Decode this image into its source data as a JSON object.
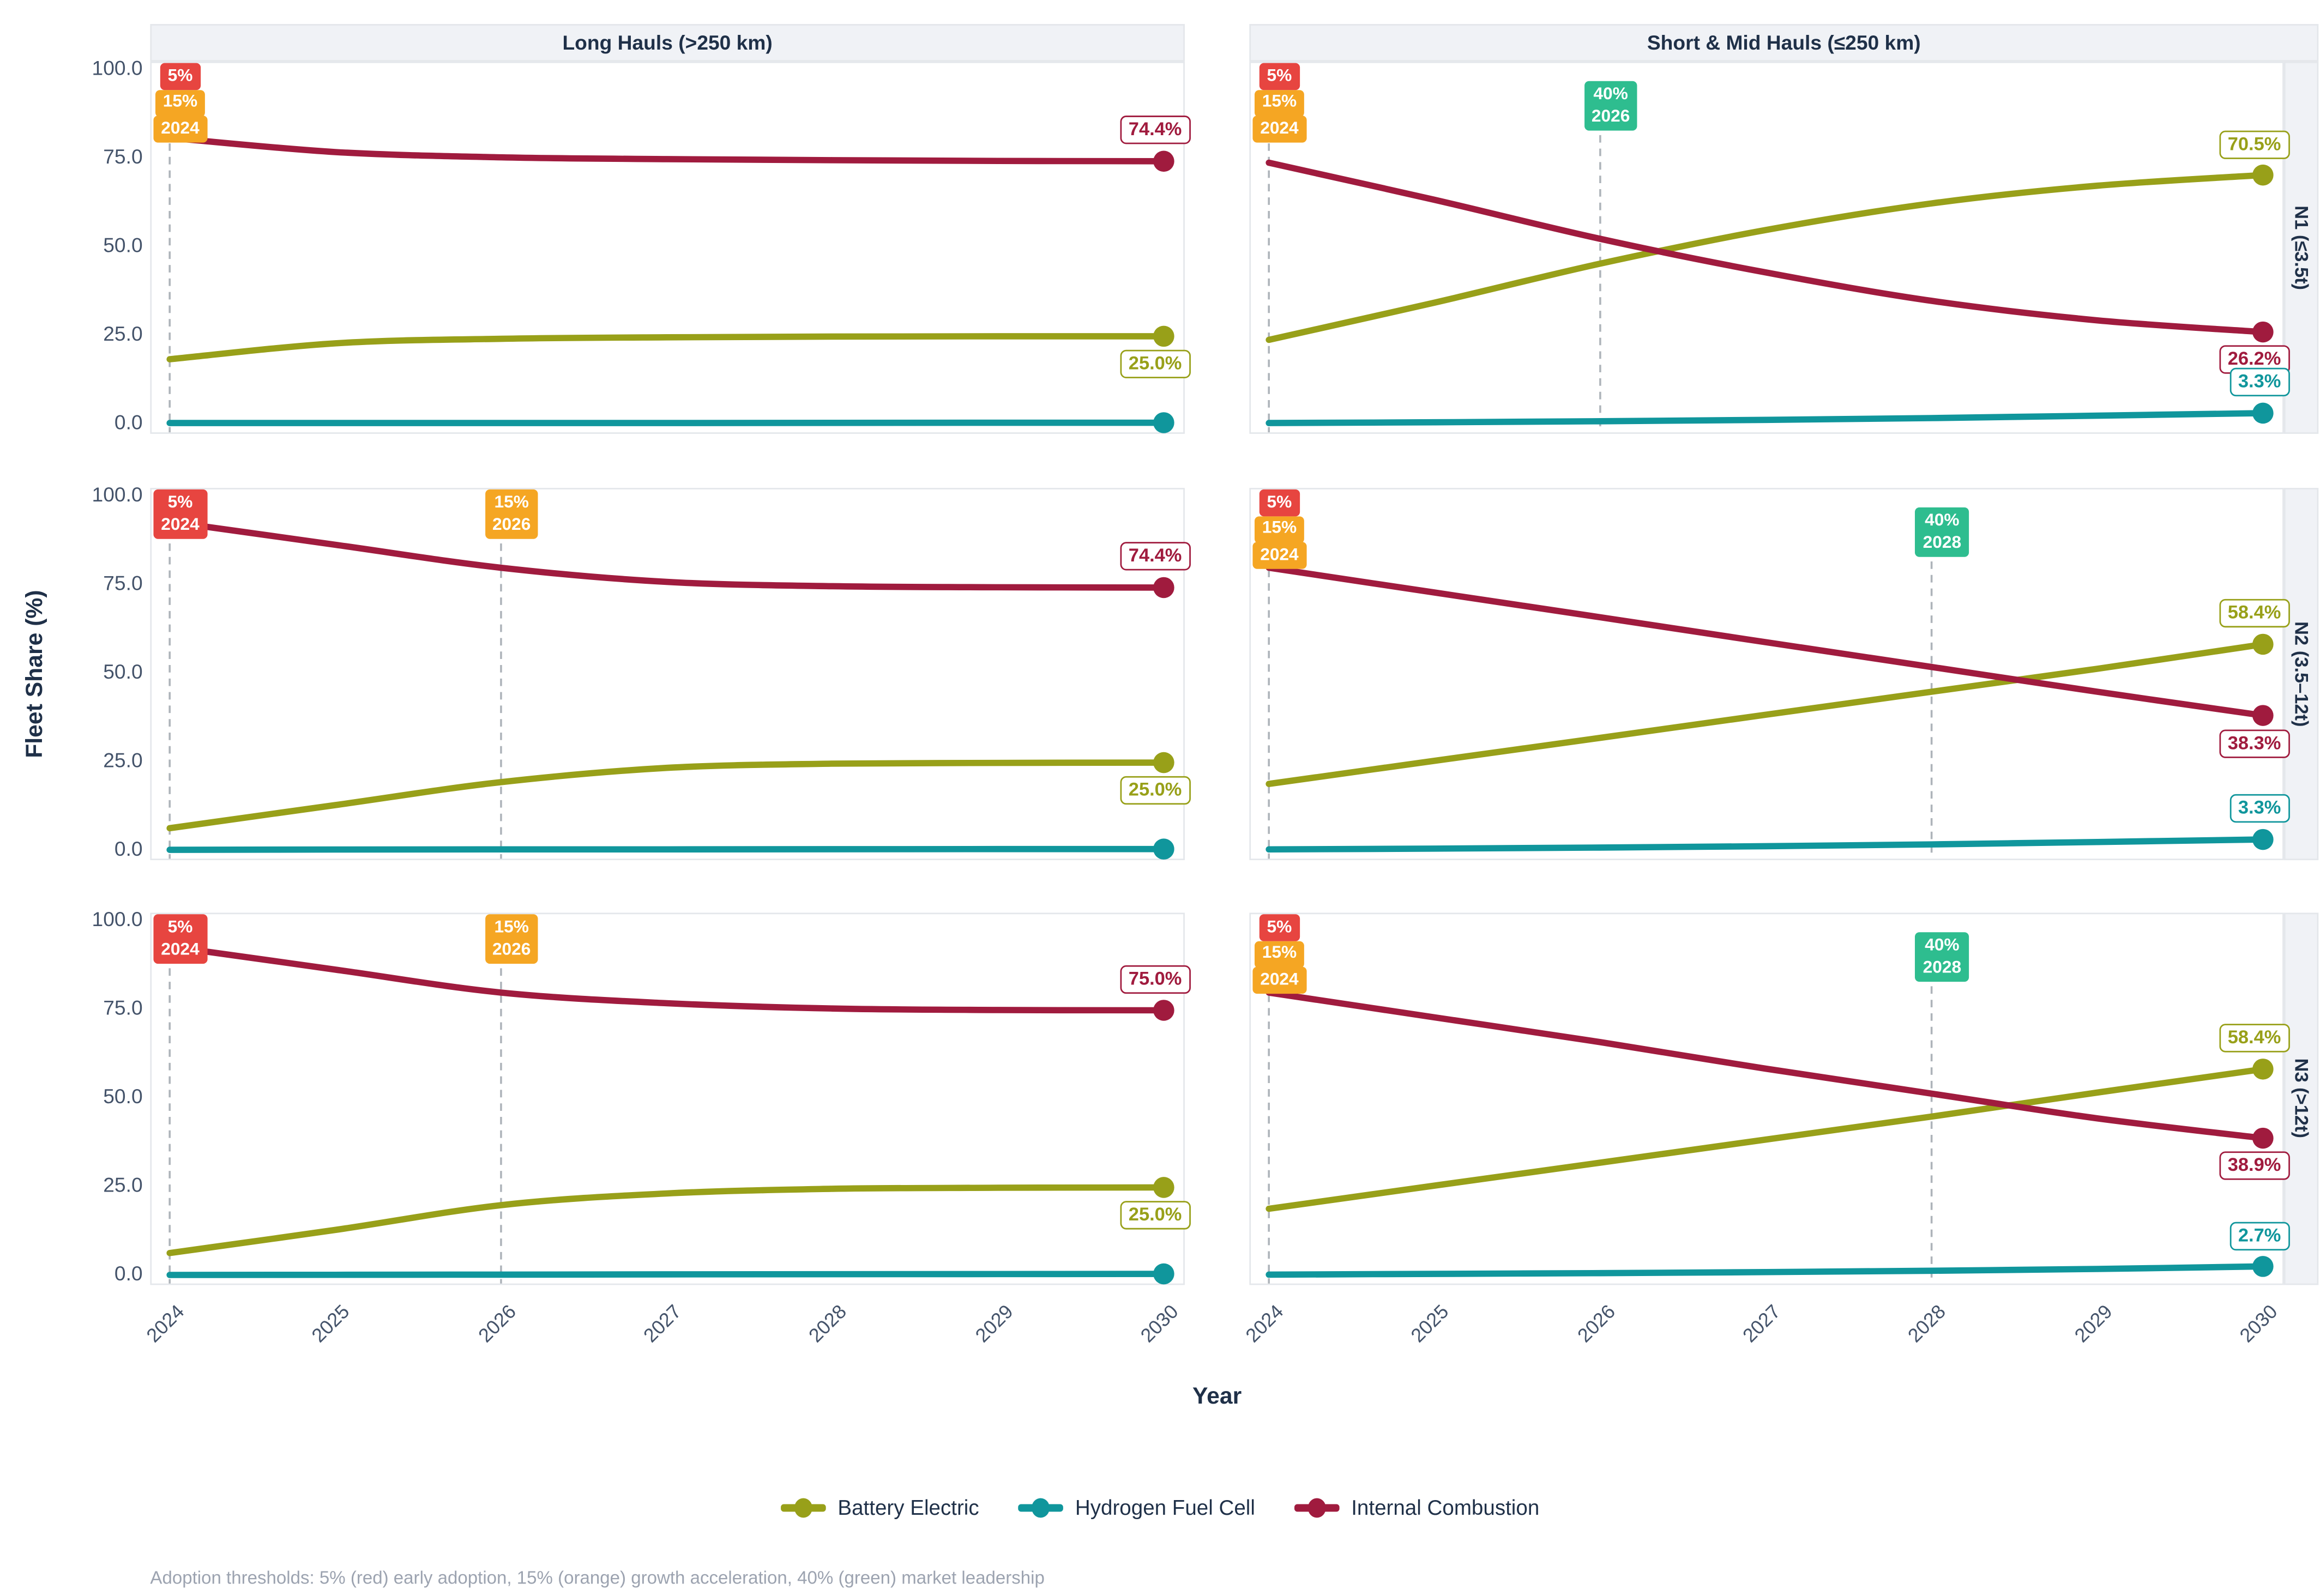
{
  "facets": {
    "col_titles": [
      "Long Hauls (>250 km)",
      "Short & Mid Hauls (≤250 km)"
    ],
    "row_titles": [
      "N1 (≤3.5t)",
      "N2 (3.5–12t)",
      "N3 (>12t)"
    ]
  },
  "axes": {
    "y_title": "Fleet Share (%)",
    "x_title": "Year",
    "y_ticks": [
      "100.0",
      "75.0",
      "50.0",
      "25.0",
      "0.0"
    ],
    "x_ticks": [
      "2024",
      "2025",
      "2026",
      "2027",
      "2028",
      "2029",
      "2030"
    ],
    "y_range": [
      0,
      100
    ]
  },
  "legend": [
    {
      "label": "Battery Electric",
      "color": "#98a019"
    },
    {
      "label": "Hydrogen Fuel Cell",
      "color": "#10969c"
    },
    {
      "label": "Internal Combustion",
      "color": "#a01b3e"
    }
  ],
  "caption": "Adoption thresholds: 5% (red) early adoption, 15% (orange) growth acceleration, 40% (green) market leadership",
  "colors": {
    "battery_electric": "#98a019",
    "hydrogen_fuel_cell": "#10969c",
    "internal_combustion": "#a01b3e",
    "threshold_red": "#e74540",
    "threshold_orange": "#f5a623",
    "threshold_green": "#2ebd8f",
    "dashed_line": "#aeb4ba",
    "strip_bg": "#f0f2f6",
    "panel_border": "#e4e7eb",
    "axis_text": "#44536a",
    "title_text": "#1f3048",
    "caption_text": "#9ca3b0"
  },
  "chart_data": {
    "type": "line",
    "x": [
      2024,
      2025,
      2026,
      2027,
      2028,
      2029,
      2030
    ],
    "ylim": [
      0,
      100
    ],
    "grid": false,
    "legend_position": "bottom",
    "panels": [
      {
        "row": 0,
        "col": 0,
        "row_title": "N1 (≤3.5t)",
        "col_title": "Long Hauls (>250 km)",
        "series": [
          {
            "name": "Battery Electric",
            "values": [
              18.5,
              23.0,
              24.3,
              24.7,
              24.9,
              25.0,
              25.0
            ]
          },
          {
            "name": "Hydrogen Fuel Cell",
            "values": [
              0.5,
              0.5,
              0.5,
              0.5,
              0.55,
              0.6,
              0.6
            ]
          },
          {
            "name": "Internal Combustion",
            "values": [
              81.0,
              77.0,
              75.5,
              75.0,
              74.7,
              74.5,
              74.4
            ]
          }
        ],
        "annotations": [
          {
            "year": 2024,
            "badges": [
              {
                "text": "5%",
                "color": "#e74540"
              },
              {
                "text": "15%",
                "color": "#f5a623"
              },
              {
                "text": "2024",
                "color": "#f5a623"
              }
            ]
          }
        ],
        "end_labels": [
          {
            "series": "Internal Combustion",
            "text": "74.4%",
            "placement": "above"
          },
          {
            "series": "Battery Electric",
            "text": "25.0%",
            "placement": "below"
          }
        ]
      },
      {
        "row": 0,
        "col": 1,
        "row_title": "N1 (≤3.5t)",
        "col_title": "Short & Mid Hauls (≤250 km)",
        "series": [
          {
            "name": "Battery Electric",
            "values": [
              24.0,
              34.5,
              45.5,
              55.0,
              62.5,
              67.5,
              70.5
            ]
          },
          {
            "name": "Hydrogen Fuel Cell",
            "values": [
              0.5,
              0.7,
              1.0,
              1.4,
              1.9,
              2.6,
              3.3
            ]
          },
          {
            "name": "Internal Combustion",
            "values": [
              74.0,
              63.5,
              52.5,
              43.0,
              35.0,
              29.5,
              26.2
            ]
          }
        ],
        "annotations": [
          {
            "year": 2024,
            "badges": [
              {
                "text": "5%",
                "color": "#e74540"
              },
              {
                "text": "15%",
                "color": "#f5a623"
              },
              {
                "text": "2024",
                "color": "#f5a623"
              }
            ]
          },
          {
            "year": 2026,
            "badges": [
              {
                "text": "40%\n2026",
                "color": "#2ebd8f"
              }
            ]
          }
        ],
        "end_labels": [
          {
            "series": "Battery Electric",
            "text": "70.5%",
            "placement": "above"
          },
          {
            "series": "Internal Combustion",
            "text": "26.2%",
            "placement": "below"
          },
          {
            "series": "Hydrogen Fuel Cell",
            "text": "3.3%",
            "placement": "above"
          }
        ]
      },
      {
        "row": 1,
        "col": 0,
        "row_title": "N2 (3.5–12t)",
        "col_title": "Long Hauls (>250 km)",
        "series": [
          {
            "name": "Battery Electric",
            "values": [
              6.5,
              13.0,
              19.5,
              23.5,
              24.7,
              24.9,
              25.0
            ]
          },
          {
            "name": "Hydrogen Fuel Cell",
            "values": [
              0.4,
              0.45,
              0.5,
              0.5,
              0.55,
              0.6,
              0.6
            ]
          },
          {
            "name": "Internal Combustion",
            "values": [
              93.0,
              86.5,
              80.0,
              76.0,
              74.8,
              74.5,
              74.4
            ]
          }
        ],
        "annotations": [
          {
            "year": 2024,
            "badges": [
              {
                "text": "5%\n2024",
                "color": "#e74540"
              }
            ]
          },
          {
            "year": 2026,
            "badges": [
              {
                "text": "15%\n2026",
                "color": "#f5a623"
              }
            ]
          }
        ],
        "end_labels": [
          {
            "series": "Internal Combustion",
            "text": "74.4%",
            "placement": "above"
          },
          {
            "series": "Battery Electric",
            "text": "25.0%",
            "placement": "below"
          }
        ]
      },
      {
        "row": 1,
        "col": 1,
        "row_title": "N2 (3.5–12t)",
        "col_title": "Short & Mid Hauls (≤250 km)",
        "series": [
          {
            "name": "Battery Electric",
            "values": [
              19.0,
              25.5,
              32.0,
              38.5,
              45.0,
              51.5,
              58.4
            ]
          },
          {
            "name": "Hydrogen Fuel Cell",
            "values": [
              0.5,
              0.7,
              1.0,
              1.4,
              1.9,
              2.6,
              3.3
            ]
          },
          {
            "name": "Internal Combustion",
            "values": [
              80.0,
              73.0,
              66.0,
              59.0,
              52.0,
              45.0,
              38.3
            ]
          }
        ],
        "annotations": [
          {
            "year": 2024,
            "badges": [
              {
                "text": "5%",
                "color": "#e74540"
              },
              {
                "text": "15%",
                "color": "#f5a623"
              },
              {
                "text": "2024",
                "color": "#f5a623"
              }
            ]
          },
          {
            "year": 2028,
            "badges": [
              {
                "text": "40%\n2028",
                "color": "#2ebd8f"
              }
            ]
          }
        ],
        "end_labels": [
          {
            "series": "Battery Electric",
            "text": "58.4%",
            "placement": "above"
          },
          {
            "series": "Internal Combustion",
            "text": "38.3%",
            "placement": "below"
          },
          {
            "series": "Hydrogen Fuel Cell",
            "text": "3.3%",
            "placement": "above"
          }
        ]
      },
      {
        "row": 2,
        "col": 0,
        "row_title": "N3 (>12t)",
        "col_title": "Long Hauls (>250 km)",
        "series": [
          {
            "name": "Battery Electric",
            "values": [
              6.5,
              13.0,
              20.0,
              23.3,
              24.6,
              24.9,
              25.0
            ]
          },
          {
            "name": "Hydrogen Fuel Cell",
            "values": [
              0.3,
              0.35,
              0.4,
              0.45,
              0.5,
              0.55,
              0.6
            ]
          },
          {
            "name": "Internal Combustion",
            "values": [
              93.0,
              86.5,
              80.0,
              77.0,
              75.5,
              75.1,
              75.0
            ]
          }
        ],
        "annotations": [
          {
            "year": 2024,
            "badges": [
              {
                "text": "5%\n2024",
                "color": "#e74540"
              }
            ]
          },
          {
            "year": 2026,
            "badges": [
              {
                "text": "15%\n2026",
                "color": "#f5a623"
              }
            ]
          }
        ],
        "end_labels": [
          {
            "series": "Internal Combustion",
            "text": "75.0%",
            "placement": "above"
          },
          {
            "series": "Battery Electric",
            "text": "25.0%",
            "placement": "below"
          }
        ]
      },
      {
        "row": 2,
        "col": 1,
        "row_title": "N3 (>12t)",
        "col_title": "Short & Mid Hauls (≤250 km)",
        "series": [
          {
            "name": "Battery Electric",
            "values": [
              19.0,
              25.5,
              32.0,
              38.5,
              45.0,
              51.8,
              58.4
            ]
          },
          {
            "name": "Hydrogen Fuel Cell",
            "values": [
              0.4,
              0.6,
              0.8,
              1.1,
              1.5,
              2.0,
              2.7
            ]
          },
          {
            "name": "Internal Combustion",
            "values": [
              80.0,
              73.0,
              66.0,
              58.5,
              51.5,
              44.5,
              38.9
            ]
          }
        ],
        "annotations": [
          {
            "year": 2024,
            "badges": [
              {
                "text": "5%",
                "color": "#e74540"
              },
              {
                "text": "15%",
                "color": "#f5a623"
              },
              {
                "text": "2024",
                "color": "#f5a623"
              }
            ]
          },
          {
            "year": 2028,
            "badges": [
              {
                "text": "40%\n2028",
                "color": "#2ebd8f"
              }
            ]
          }
        ],
        "end_labels": [
          {
            "series": "Battery Electric",
            "text": "58.4%",
            "placement": "above"
          },
          {
            "series": "Internal Combustion",
            "text": "38.9%",
            "placement": "below"
          },
          {
            "series": "Hydrogen Fuel Cell",
            "text": "2.7%",
            "placement": "above"
          }
        ]
      }
    ]
  }
}
